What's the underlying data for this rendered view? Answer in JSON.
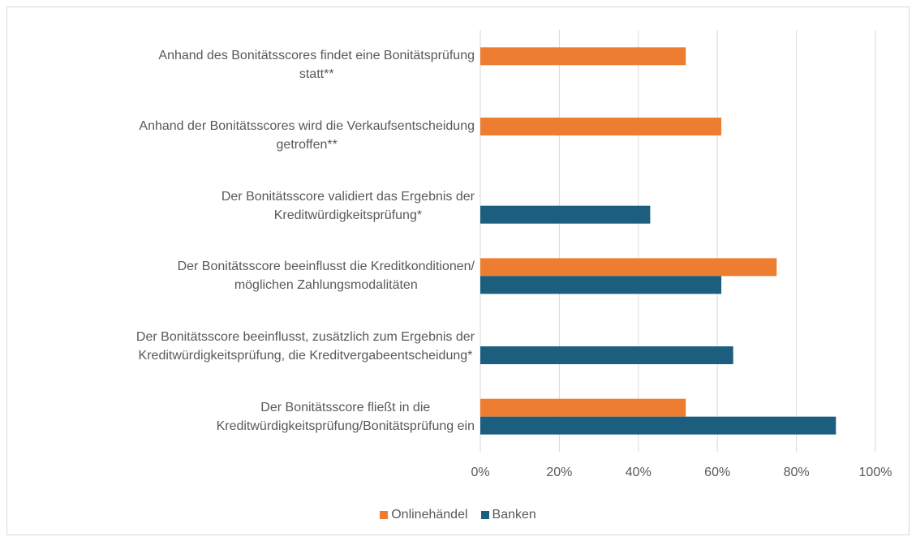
{
  "chart_data": {
    "type": "barh",
    "categories": [
      "Anhand des Bonitätsscores findet eine Bonitätsprüfung\nstatt**",
      "Anhand der Bonitätsscores wird die Verkaufsentscheidung\ngetroffen**",
      "Der Bonitätsscore validiert das Ergebnis der\nKreditwürdigkeitsprüfung*",
      "Der Bonitätsscore beeinflusst die Kreditkonditionen/\nmöglichen Zahlungsmodalitäten",
      "Der Bonitätsscore beeinflusst, zusätzlich zum Ergebnis der\nKreditwürdigkeitsprüfung, die Kreditvergabeentscheidung*",
      "Der Bonitätsscore fließt in die\nKreditwürdigkeitsprüfung/Bonitätsprüfung ein"
    ],
    "series": [
      {
        "name": "Onlinehändel",
        "color": "#ED7D31",
        "values": [
          52,
          61,
          null,
          75,
          null,
          52
        ]
      },
      {
        "name": "Banken",
        "color": "#1B5E7E",
        "values": [
          null,
          null,
          43,
          61,
          64,
          90
        ]
      }
    ],
    "xlim": [
      0,
      100
    ],
    "xticks": [
      {
        "value": 0,
        "label": "0%"
      },
      {
        "value": 20,
        "label": "20%"
      },
      {
        "value": 40,
        "label": "40%"
      },
      {
        "value": 60,
        "label": "60%"
      },
      {
        "value": 80,
        "label": "80%"
      },
      {
        "value": 100,
        "label": "100%"
      }
    ],
    "grid": true,
    "legend": "bottom"
  }
}
